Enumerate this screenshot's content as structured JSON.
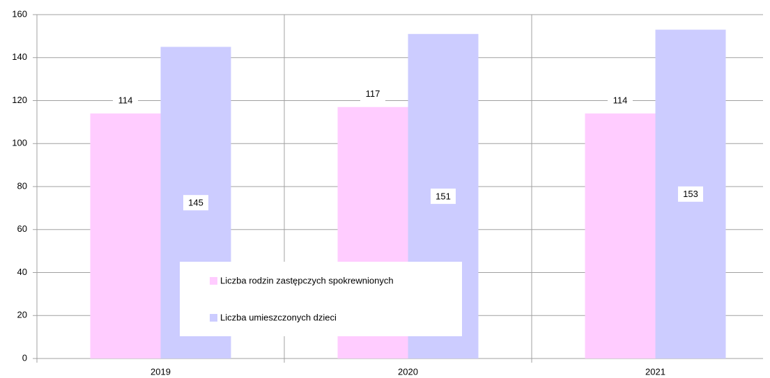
{
  "chart_data": {
    "type": "bar",
    "categories": [
      "2019",
      "2020",
      "2021"
    ],
    "series": [
      {
        "name": "Liczba rodzin zastępczych spokrewnionych",
        "color": "#ffccff",
        "values": [
          114,
          117,
          114
        ]
      },
      {
        "name": "Liczba umieszczonych dzieci",
        "color": "#ccccff",
        "values": [
          145,
          151,
          153
        ]
      }
    ],
    "ylim": [
      0,
      160
    ],
    "yticks": [
      0,
      20,
      40,
      60,
      80,
      100,
      120,
      140,
      160
    ],
    "grid": true
  }
}
